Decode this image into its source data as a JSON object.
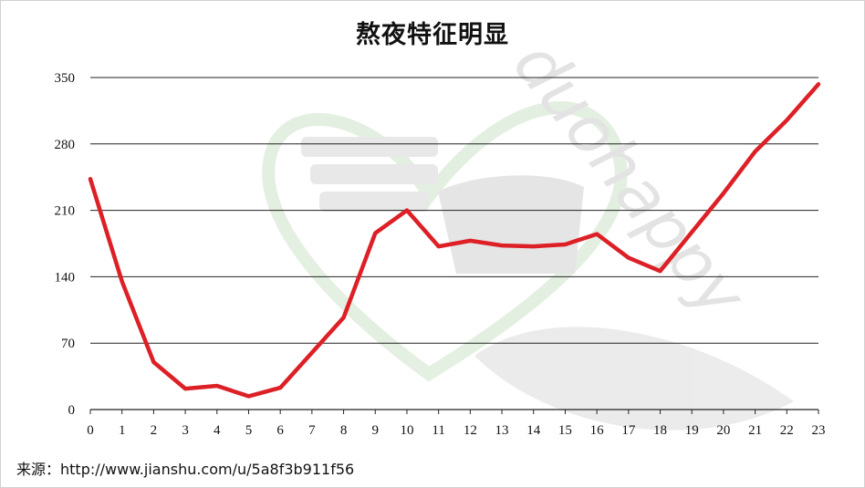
{
  "chart_data": {
    "type": "line",
    "title": "熬夜特征明显",
    "xlabel": "",
    "ylabel": "",
    "x": [
      0,
      1,
      2,
      3,
      4,
      5,
      6,
      7,
      8,
      9,
      10,
      11,
      12,
      13,
      14,
      15,
      16,
      17,
      18,
      19,
      20,
      21,
      22,
      23
    ],
    "series": [
      {
        "values": [
          243,
          135,
          50,
          22,
          25,
          14,
          23,
          60,
          97,
          186,
          210,
          172,
          178,
          173,
          172,
          174,
          185,
          160,
          146,
          187,
          228,
          272,
          305,
          343
        ],
        "color": "#dd1f26"
      }
    ],
    "ylim": [
      0,
      350
    ],
    "yticks": [
      0,
      70,
      140,
      210,
      280,
      350
    ],
    "grid": "horizontal",
    "legend": "none"
  },
  "watermark": {
    "text": "duohappy"
  },
  "source": "来源：http://www.jianshu.com/u/5a8f3b911f56"
}
